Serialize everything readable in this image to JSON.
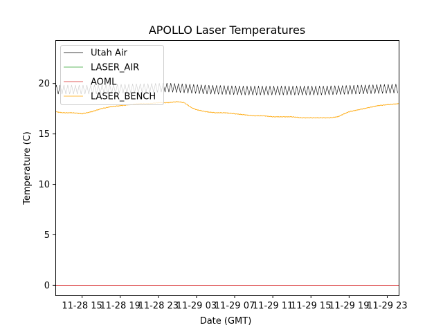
{
  "chart_data": {
    "type": "line",
    "title": "APOLLO Laser Temperatures",
    "xlabel": "Date (GMT)",
    "ylabel": "Temperature (C)",
    "x_unit": "hours since 11-28 00:00 GMT",
    "xlim": [
      12.2,
      48.2
    ],
    "ylim": [
      -1.0,
      24.3
    ],
    "x_ticks": [
      {
        "value": 15,
        "label": "11-28 15"
      },
      {
        "value": 19,
        "label": "11-28 19"
      },
      {
        "value": 23,
        "label": "11-28 23"
      },
      {
        "value": 27,
        "label": "11-29 03"
      },
      {
        "value": 31,
        "label": "11-29 07"
      },
      {
        "value": 35,
        "label": "11-29 11"
      },
      {
        "value": 39,
        "label": "11-29 15"
      },
      {
        "value": 43,
        "label": "11-29 19"
      },
      {
        "value": 47,
        "label": "11-29 23"
      }
    ],
    "y_ticks": [
      {
        "value": 0,
        "label": "0"
      },
      {
        "value": 5,
        "label": "5"
      },
      {
        "value": 10,
        "label": "10"
      },
      {
        "value": 15,
        "label": "15"
      },
      {
        "value": 20,
        "label": "20"
      }
    ],
    "legend_position": "top-left",
    "series": [
      {
        "name": "Utah Air",
        "color": "#000000",
        "oscillation": {
          "amplitude": 0.45,
          "period_hours": 0.4
        },
        "points": [
          [
            12.2,
            19.4
          ],
          [
            16,
            19.4
          ],
          [
            20,
            19.5
          ],
          [
            24,
            19.6
          ],
          [
            28,
            19.4
          ],
          [
            32,
            19.3
          ],
          [
            36,
            19.3
          ],
          [
            40,
            19.3
          ],
          [
            44,
            19.4
          ],
          [
            48.2,
            19.5
          ]
        ]
      },
      {
        "name": "LASER_AIR",
        "color": "#2ca02c",
        "points": []
      },
      {
        "name": "AOML",
        "color": "#d62728",
        "points": [
          [
            12.2,
            0.0
          ],
          [
            48.2,
            0.0
          ]
        ]
      },
      {
        "name": "LASER_BENCH",
        "color": "#ffa500",
        "points": [
          [
            12.2,
            17.2
          ],
          [
            13,
            17.1
          ],
          [
            14,
            17.1
          ],
          [
            15,
            17.0
          ],
          [
            16,
            17.2
          ],
          [
            17,
            17.5
          ],
          [
            18,
            17.7
          ],
          [
            19,
            17.8
          ],
          [
            20,
            17.9
          ],
          [
            21,
            18.0
          ],
          [
            22,
            18.0
          ],
          [
            23,
            18.1
          ],
          [
            24,
            18.1
          ],
          [
            25,
            18.2
          ],
          [
            25.7,
            18.1
          ],
          [
            26.5,
            17.6
          ],
          [
            27,
            17.4
          ],
          [
            28,
            17.2
          ],
          [
            29,
            17.1
          ],
          [
            30,
            17.1
          ],
          [
            31,
            17.0
          ],
          [
            32,
            16.9
          ],
          [
            33,
            16.8
          ],
          [
            34,
            16.8
          ],
          [
            35,
            16.7
          ],
          [
            36,
            16.7
          ],
          [
            37,
            16.7
          ],
          [
            38,
            16.6
          ],
          [
            39,
            16.6
          ],
          [
            40,
            16.6
          ],
          [
            41,
            16.6
          ],
          [
            41.8,
            16.7
          ],
          [
            42.5,
            17.0
          ],
          [
            43,
            17.2
          ],
          [
            44,
            17.4
          ],
          [
            45,
            17.6
          ],
          [
            46,
            17.8
          ],
          [
            47,
            17.9
          ],
          [
            48.2,
            18.0
          ]
        ]
      }
    ]
  }
}
